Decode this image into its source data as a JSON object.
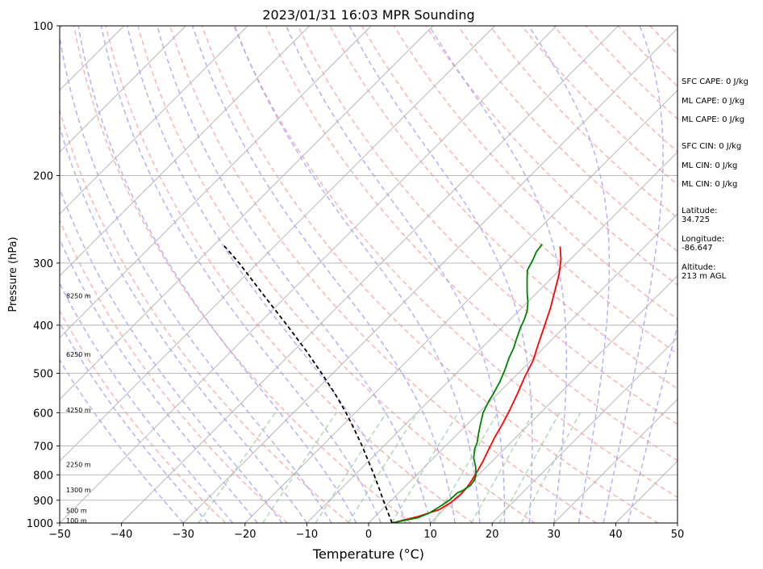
{
  "chart_data": {
    "type": "line",
    "title": "2023/01/31 16:03 MPR Sounding",
    "xlabel": "Temperature (°C)",
    "ylabel": "Pressure (hPa)",
    "xlim": [
      -50,
      50
    ],
    "ylim": [
      1000,
      100
    ],
    "y_scale": "log",
    "skew": "skew-T",
    "grid": true,
    "x_ticks": [
      -50,
      -40,
      -30,
      -20,
      -10,
      0,
      10,
      20,
      30,
      40,
      50
    ],
    "x_tick_labels": [
      "−50",
      "−40",
      "−30",
      "−20",
      "−10",
      "0",
      "10",
      "20",
      "30",
      "40",
      "50"
    ],
    "y_ticks": [
      1000,
      900,
      800,
      700,
      600,
      500,
      400,
      300,
      200,
      100
    ],
    "y_tick_labels": [
      "1000",
      "900",
      "800",
      "700",
      "600",
      "500",
      "400",
      "300",
      "200",
      "100"
    ],
    "series": [
      {
        "color": "#ff0000",
        "points": [
          [
            3.8,
            1000
          ],
          [
            7.0,
            970
          ],
          [
            9.3,
            940
          ],
          [
            10.0,
            910
          ],
          [
            10.3,
            880
          ],
          [
            10.2,
            850
          ],
          [
            9.8,
            820
          ],
          [
            9.3,
            790
          ],
          [
            8.5,
            750
          ],
          [
            7.5,
            710
          ],
          [
            6.5,
            670
          ],
          [
            5.6,
            630
          ],
          [
            4.5,
            590
          ],
          [
            3.2,
            550
          ],
          [
            1.7,
            510
          ],
          [
            0.3,
            470
          ],
          [
            -1.3,
            440
          ],
          [
            -3.2,
            405
          ],
          [
            -5.3,
            370
          ],
          [
            -7.5,
            340
          ],
          [
            -9.5,
            315
          ],
          [
            -11.5,
            295
          ],
          [
            -13.7,
            278
          ]
        ]
      },
      {
        "color": "#008000",
        "points": [
          [
            3.8,
            1000
          ],
          [
            7.2,
            975
          ],
          [
            8.2,
            955
          ],
          [
            8.8,
            930
          ],
          [
            9.4,
            900
          ],
          [
            9.5,
            870
          ],
          [
            10.0,
            860
          ],
          [
            10.4,
            840
          ],
          [
            10.2,
            820
          ],
          [
            9.6,
            800
          ],
          [
            8.2,
            770
          ],
          [
            6.5,
            740
          ],
          [
            5.2,
            710
          ],
          [
            4.6,
            690
          ],
          [
            3.3,
            660
          ],
          [
            2.0,
            630
          ],
          [
            0.7,
            600
          ],
          [
            -0.2,
            570
          ],
          [
            -0.7,
            550
          ],
          [
            -1.6,
            520
          ],
          [
            -2.8,
            490
          ],
          [
            -4.0,
            465
          ],
          [
            -4.8,
            445
          ],
          [
            -5.9,
            425
          ],
          [
            -7.0,
            405
          ],
          [
            -7.7,
            390
          ],
          [
            -8.6,
            375
          ],
          [
            -9.9,
            360
          ],
          [
            -11.5,
            345
          ],
          [
            -13.6,
            325
          ],
          [
            -15.2,
            310
          ],
          [
            -16.0,
            295
          ],
          [
            -16.7,
            285
          ],
          [
            -17.0,
            275
          ]
        ]
      },
      {
        "color": "#000000",
        "dashed": true,
        "points": [
          [
            3.8,
            1000
          ],
          [
            1.3,
            950
          ],
          [
            -1.3,
            900
          ],
          [
            -4.0,
            850
          ],
          [
            -6.9,
            800
          ],
          [
            -10.1,
            750
          ],
          [
            -13.5,
            700
          ],
          [
            -17.3,
            650
          ],
          [
            -21.5,
            600
          ],
          [
            -26.3,
            550
          ],
          [
            -31.8,
            500
          ],
          [
            -38.0,
            450
          ],
          [
            -45.2,
            400
          ],
          [
            -53.5,
            350
          ],
          [
            -63.0,
            300
          ],
          [
            -68.2,
            277
          ]
        ]
      }
    ],
    "height_labels": [
      {
        "text": "100 m",
        "p": 989
      },
      {
        "text": "500 m",
        "p": 943
      },
      {
        "text": "1300 m",
        "p": 858
      },
      {
        "text": "2250 m",
        "p": 763
      },
      {
        "text": "4250 m",
        "p": 593
      },
      {
        "text": "6250 m",
        "p": 458
      },
      {
        "text": "8250 m",
        "p": 349
      }
    ],
    "side_stats": [
      "SFC CAPE: 0 J/kg",
      "ML CAPE: 0 J/kg",
      "ML CAPE: 0 J/kg",
      "SFC CIN: 0 J/kg",
      "ML CIN: 0 J/kg",
      "ML CIN: 0 J/kg",
      "Latitude:",
      "34.725",
      "Longitude:",
      "-86.647",
      "Altitude:",
      "213 m AGL"
    ],
    "colors": {
      "isotherm": "#b0b0b0",
      "dry_adiabat": "#ff9999",
      "moist_adiabat": "#9999ff",
      "mixing_ratio": "#99cc99"
    }
  }
}
